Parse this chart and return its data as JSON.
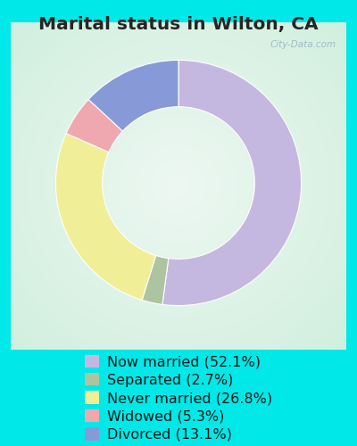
{
  "title": "Marital status in Wilton, CA",
  "slices": [
    52.1,
    2.7,
    26.8,
    5.3,
    13.1
  ],
  "labels": [
    "Now married (52.1%)",
    "Separated (2.7%)",
    "Never married (26.8%)",
    "Widowed (5.3%)",
    "Divorced (13.1%)"
  ],
  "colors": [
    "#c5b8e0",
    "#adc4a0",
    "#f0ef98",
    "#f0a8b0",
    "#8899d8"
  ],
  "bg_outer": "#00e8e8",
  "bg_box_color": "#d8f0e0",
  "title_color": "#252525",
  "title_fontsize": 14.5,
  "watermark": "City-Data.com",
  "legend_fontsize": 11.5,
  "donut_width": 0.38,
  "start_angle": 90
}
